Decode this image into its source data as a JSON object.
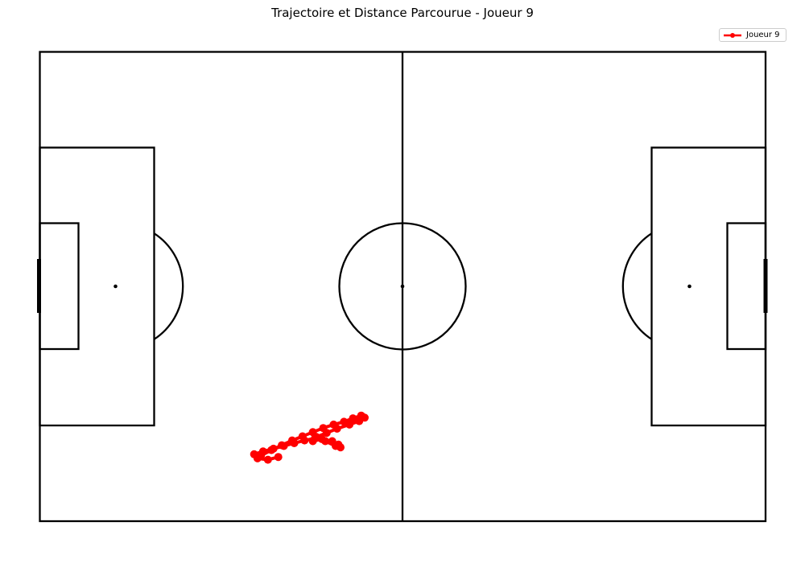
{
  "chart_data": {
    "type": "line",
    "title": "Trajectoire et Distance Parcourue - Joueur 9",
    "xlabel": "",
    "ylabel": "",
    "xlim": [
      0,
      105
    ],
    "ylim": [
      0,
      68
    ],
    "grid": false,
    "legend_position": "top-right",
    "background": "football-pitch",
    "series": [
      {
        "name": "Joueur 9",
        "color": "#ff0000",
        "marker": "circle",
        "x": [
          32.0,
          33.5,
          35.0,
          36.5,
          38.0,
          39.5,
          41.0,
          42.5,
          44.0,
          45.3,
          46.5,
          47.0,
          46.2,
          44.8,
          43.0,
          41.5,
          40.0,
          39.5,
          40.8,
          42.3,
          43.2,
          43.5,
          42.8,
          41.3,
          39.8,
          38.3,
          36.8,
          35.3,
          33.8,
          32.3,
          31.0,
          31.5,
          33.0,
          34.5
        ],
        "y": [
          9.5,
          10.3,
          11.0,
          11.7,
          12.3,
          12.9,
          13.5,
          14.0,
          14.4,
          14.9,
          15.3,
          15.0,
          14.5,
          14.0,
          13.4,
          12.8,
          12.2,
          11.6,
          11.9,
          11.6,
          11.1,
          10.7,
          10.9,
          11.6,
          12.0,
          11.7,
          11.3,
          10.9,
          10.5,
          10.1,
          9.7,
          9.1,
          8.9,
          9.3
        ]
      }
    ]
  }
}
